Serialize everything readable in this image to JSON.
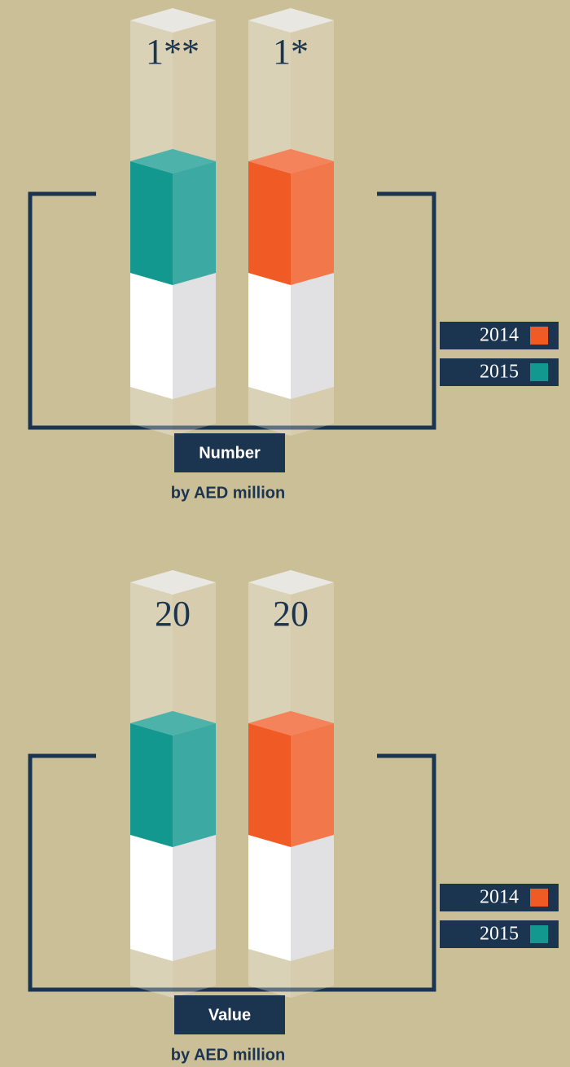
{
  "chart_data": [
    {
      "type": "bar",
      "title": "Number",
      "subtitle": "by AED million",
      "series": [
        {
          "name": "2015",
          "color": "#12988e",
          "values": [
            1
          ],
          "value_labels": [
            "1**"
          ]
        },
        {
          "name": "2014",
          "color": "#f05a24",
          "values": [
            1
          ],
          "value_labels": [
            "1*"
          ]
        }
      ]
    },
    {
      "type": "bar",
      "title": "Value",
      "subtitle": "by AED million",
      "series": [
        {
          "name": "2015",
          "color": "#12988e",
          "values": [
            20
          ]
        },
        {
          "name": "2014",
          "color": "#f05a24",
          "values": [
            20
          ]
        }
      ]
    }
  ]
}
